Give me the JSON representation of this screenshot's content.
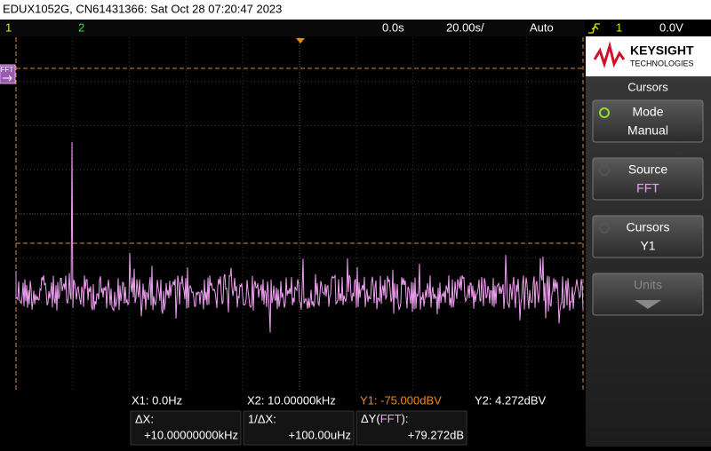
{
  "header": {
    "title": "EDUX1052G, CN61431366: Sat Oct 28 07:20:47 2023"
  },
  "status": {
    "ch1": "1",
    "ch2": "2",
    "delay": "0.0s",
    "timebase": "20.00s/",
    "trigger_mode": "Auto",
    "trigger_source": "1",
    "trigger_level": "0.0V"
  },
  "screen": {
    "marker": "FFT"
  },
  "panel": {
    "brand": "KEYSIGHT",
    "brand_sub": "TECHNOLOGIES",
    "menu_title": "Cursors",
    "softkeys": [
      {
        "label": "Mode",
        "value": "Manual"
      },
      {
        "label": "Source",
        "value": "FFT"
      },
      {
        "label": "Cursors",
        "value": "Y1"
      },
      {
        "label": "Units"
      }
    ]
  },
  "readout": {
    "x1": "X1:  0.0Hz",
    "x2": "X2:  10.00000kHz",
    "y1": "Y1: -75.000dBV",
    "y2": "Y2:  4.272dBV",
    "dx_label": "ΔX:",
    "dx_value": "+10.00000000kHz",
    "inv_dx_label": "1/ΔX:",
    "inv_dx_value": "+100.00uHz",
    "dy_label": "ΔY(",
    "dy_source": "FFT",
    "dy_close": "):",
    "dy_value": "+79.272dB"
  }
}
